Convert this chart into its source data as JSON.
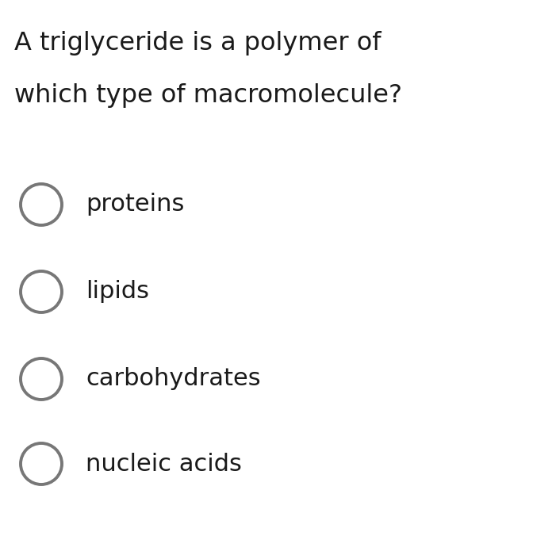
{
  "background_color": "#ffffff",
  "question_line1": "A triglyceride is a polymer of",
  "question_line2": "which type of macromolecule?",
  "options": [
    "proteins",
    "lipids",
    "carbohydrates",
    "nucleic acids"
  ],
  "question_fontsize": 23,
  "option_fontsize": 22,
  "question_color": "#1a1a1a",
  "option_color": "#1a1a1a",
  "circle_color": "#777777",
  "circle_lw": 2.8,
  "figsize": [
    7.01,
    6.76
  ],
  "dpi": 100
}
